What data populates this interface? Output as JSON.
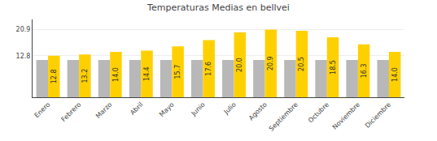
{
  "chart_data": {
    "type": "bar",
    "title": "Temperaturas Medias en bellvei",
    "categories": [
      "Enero",
      "Febrero",
      "Marzo",
      "Abril",
      "Mayo",
      "Junio",
      "Julio",
      "Agosto",
      "Septiembre",
      "Octubre",
      "Noviembre",
      "Diciembre"
    ],
    "series": [
      {
        "color": "#B8B8B8",
        "values": [
          11.5,
          11.5,
          11.5,
          11.5,
          11.5,
          11.5,
          11.5,
          11.5,
          11.5,
          11.5,
          11.5,
          11.5
        ]
      },
      {
        "color": "#FFD000",
        "values": [
          12.8,
          13.2,
          14.0,
          14.4,
          15.7,
          17.6,
          20.0,
          20.9,
          20.5,
          18.5,
          16.3,
          14.0
        ],
        "data_labels": true,
        "value_labels": [
          "12.8",
          "13.2",
          "14.0",
          "14.4",
          "15.7",
          "17.6",
          "20.0",
          "20.9",
          "20.5",
          "18.5",
          "16.3",
          "14.0"
        ]
      }
    ],
    "ylim": [
      0,
      24
    ],
    "yticks": [
      12.8,
      20.9
    ],
    "grid": true
  }
}
